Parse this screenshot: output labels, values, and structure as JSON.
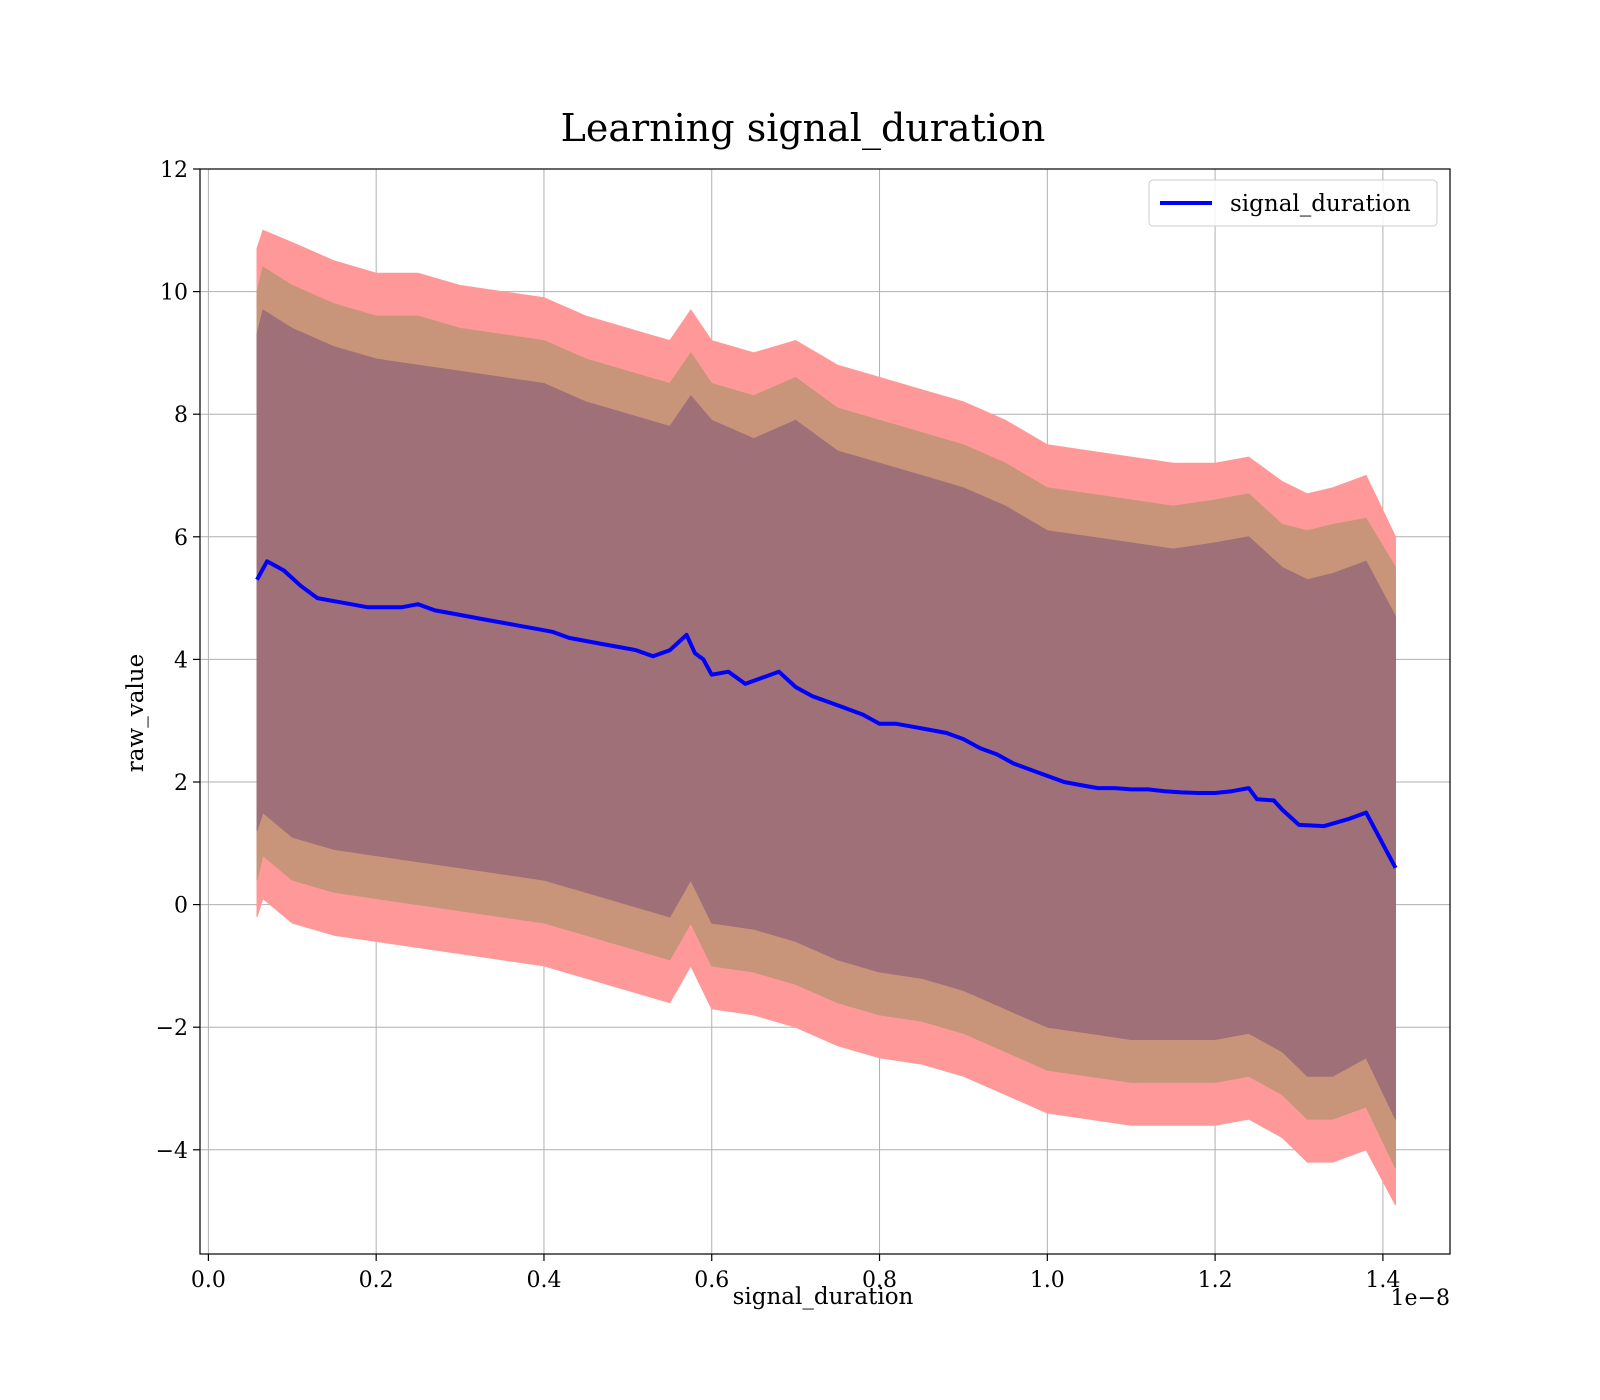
{
  "chart_data": {
    "type": "area",
    "title": "Learning signal_duration",
    "xlabel": "signal_duration",
    "ylabel": "raw_value",
    "x_offset_text": "1e−8",
    "xlim": [
      -0.01,
      1.48
    ],
    "ylim": [
      -5.7,
      12
    ],
    "x_ticks": [
      0.0,
      0.2,
      0.4,
      0.6,
      0.8,
      1.0,
      1.2,
      1.4
    ],
    "x_tick_labels": [
      "0.0",
      "0.2",
      "0.4",
      "0.6",
      "0.8",
      "1.0",
      "1.2",
      "1.4"
    ],
    "y_ticks": [
      -4,
      -2,
      0,
      2,
      4,
      6,
      8,
      10,
      12
    ],
    "y_tick_labels": [
      "−4",
      "−2",
      "0",
      "2",
      "4",
      "6",
      "8",
      "10",
      "12"
    ],
    "grid": true,
    "legend_position": "top-right",
    "colors": {
      "line": "#0000ff",
      "band_outer": "#ff9999",
      "band_middle": "#c8957a",
      "band_inner": "#a07078"
    },
    "series": [
      {
        "name": "signal_duration",
        "x": [
          0.058,
          0.07,
          0.09,
          0.11,
          0.13,
          0.15,
          0.17,
          0.19,
          0.21,
          0.23,
          0.25,
          0.27,
          0.29,
          0.31,
          0.33,
          0.35,
          0.37,
          0.39,
          0.41,
          0.43,
          0.45,
          0.47,
          0.49,
          0.51,
          0.53,
          0.55,
          0.57,
          0.58,
          0.59,
          0.6,
          0.62,
          0.64,
          0.66,
          0.68,
          0.7,
          0.72,
          0.74,
          0.76,
          0.78,
          0.8,
          0.82,
          0.84,
          0.86,
          0.88,
          0.9,
          0.92,
          0.94,
          0.96,
          0.98,
          1.0,
          1.02,
          1.04,
          1.06,
          1.08,
          1.1,
          1.12,
          1.14,
          1.16,
          1.18,
          1.2,
          1.22,
          1.24,
          1.25,
          1.27,
          1.28,
          1.3,
          1.33,
          1.36,
          1.38,
          1.415
        ],
        "values": [
          5.3,
          5.6,
          5.45,
          5.2,
          5.0,
          4.95,
          4.9,
          4.85,
          4.85,
          4.85,
          4.9,
          4.8,
          4.75,
          4.7,
          4.65,
          4.6,
          4.55,
          4.5,
          4.45,
          4.35,
          4.3,
          4.25,
          4.2,
          4.15,
          4.05,
          4.15,
          4.4,
          4.1,
          4.0,
          3.75,
          3.8,
          3.6,
          3.7,
          3.8,
          3.55,
          3.4,
          3.3,
          3.2,
          3.1,
          2.95,
          2.95,
          2.9,
          2.85,
          2.8,
          2.7,
          2.55,
          2.45,
          2.3,
          2.2,
          2.1,
          2.0,
          1.95,
          1.9,
          1.9,
          1.88,
          1.88,
          1.85,
          1.83,
          1.82,
          1.82,
          1.85,
          1.9,
          1.72,
          1.7,
          1.55,
          1.3,
          1.28,
          1.4,
          1.5,
          0.6
        ]
      }
    ],
    "bands": [
      {
        "x": [
          0.058,
          0.065,
          0.1,
          0.15,
          0.2,
          0.25,
          0.3,
          0.35,
          0.4,
          0.45,
          0.5,
          0.55,
          0.575,
          0.6,
          0.65,
          0.7,
          0.75,
          0.8,
          0.85,
          0.9,
          0.95,
          1.0,
          1.05,
          1.1,
          1.15,
          1.2,
          1.24,
          1.28,
          1.31,
          1.34,
          1.38,
          1.415
        ],
        "upper": [
          10.7,
          11.0,
          10.8,
          10.5,
          10.3,
          10.3,
          10.1,
          10.0,
          9.9,
          9.6,
          9.4,
          9.2,
          9.7,
          9.2,
          9.0,
          9.2,
          8.8,
          8.6,
          8.4,
          8.2,
          7.9,
          7.5,
          7.4,
          7.3,
          7.2,
          7.2,
          7.3,
          6.9,
          6.7,
          6.8,
          7.0,
          6.0
        ],
        "lower": [
          -0.2,
          0.1,
          -0.3,
          -0.5,
          -0.6,
          -0.7,
          -0.8,
          -0.9,
          -1.0,
          -1.2,
          -1.4,
          -1.6,
          -1.0,
          -1.7,
          -1.8,
          -2.0,
          -2.3,
          -2.5,
          -2.6,
          -2.8,
          -3.1,
          -3.4,
          -3.5,
          -3.6,
          -3.6,
          -3.6,
          -3.5,
          -3.8,
          -4.2,
          -4.2,
          -4.0,
          -4.9
        ]
      },
      {
        "x": [
          0.058,
          0.065,
          0.1,
          0.15,
          0.2,
          0.25,
          0.3,
          0.35,
          0.4,
          0.45,
          0.5,
          0.55,
          0.575,
          0.6,
          0.65,
          0.7,
          0.75,
          0.8,
          0.85,
          0.9,
          0.95,
          1.0,
          1.05,
          1.1,
          1.15,
          1.2,
          1.24,
          1.28,
          1.31,
          1.34,
          1.38,
          1.415
        ],
        "upper": [
          10.0,
          10.4,
          10.1,
          9.8,
          9.6,
          9.6,
          9.4,
          9.3,
          9.2,
          8.9,
          8.7,
          8.5,
          9.0,
          8.5,
          8.3,
          8.6,
          8.1,
          7.9,
          7.7,
          7.5,
          7.2,
          6.8,
          6.7,
          6.6,
          6.5,
          6.6,
          6.7,
          6.2,
          6.1,
          6.2,
          6.3,
          5.5
        ],
        "lower": [
          0.4,
          0.8,
          0.4,
          0.2,
          0.1,
          0.0,
          -0.1,
          -0.2,
          -0.3,
          -0.5,
          -0.7,
          -0.9,
          -0.3,
          -1.0,
          -1.1,
          -1.3,
          -1.6,
          -1.8,
          -1.9,
          -2.1,
          -2.4,
          -2.7,
          -2.8,
          -2.9,
          -2.9,
          -2.9,
          -2.8,
          -3.1,
          -3.5,
          -3.5,
          -3.3,
          -4.3
        ]
      },
      {
        "x": [
          0.058,
          0.065,
          0.1,
          0.15,
          0.2,
          0.25,
          0.3,
          0.35,
          0.4,
          0.45,
          0.5,
          0.55,
          0.575,
          0.6,
          0.65,
          0.7,
          0.75,
          0.8,
          0.85,
          0.9,
          0.95,
          1.0,
          1.05,
          1.1,
          1.15,
          1.2,
          1.24,
          1.28,
          1.31,
          1.34,
          1.38,
          1.415
        ],
        "upper": [
          9.3,
          9.7,
          9.4,
          9.1,
          8.9,
          8.8,
          8.7,
          8.6,
          8.5,
          8.2,
          8.0,
          7.8,
          8.3,
          7.9,
          7.6,
          7.9,
          7.4,
          7.2,
          7.0,
          6.8,
          6.5,
          6.1,
          6.0,
          5.9,
          5.8,
          5.9,
          6.0,
          5.5,
          5.3,
          5.4,
          5.6,
          4.7
        ],
        "lower": [
          1.2,
          1.5,
          1.1,
          0.9,
          0.8,
          0.7,
          0.6,
          0.5,
          0.4,
          0.2,
          0.0,
          -0.2,
          0.4,
          -0.3,
          -0.4,
          -0.6,
          -0.9,
          -1.1,
          -1.2,
          -1.4,
          -1.7,
          -2.0,
          -2.1,
          -2.2,
          -2.2,
          -2.2,
          -2.1,
          -2.4,
          -2.8,
          -2.8,
          -2.5,
          -3.5
        ]
      }
    ]
  }
}
